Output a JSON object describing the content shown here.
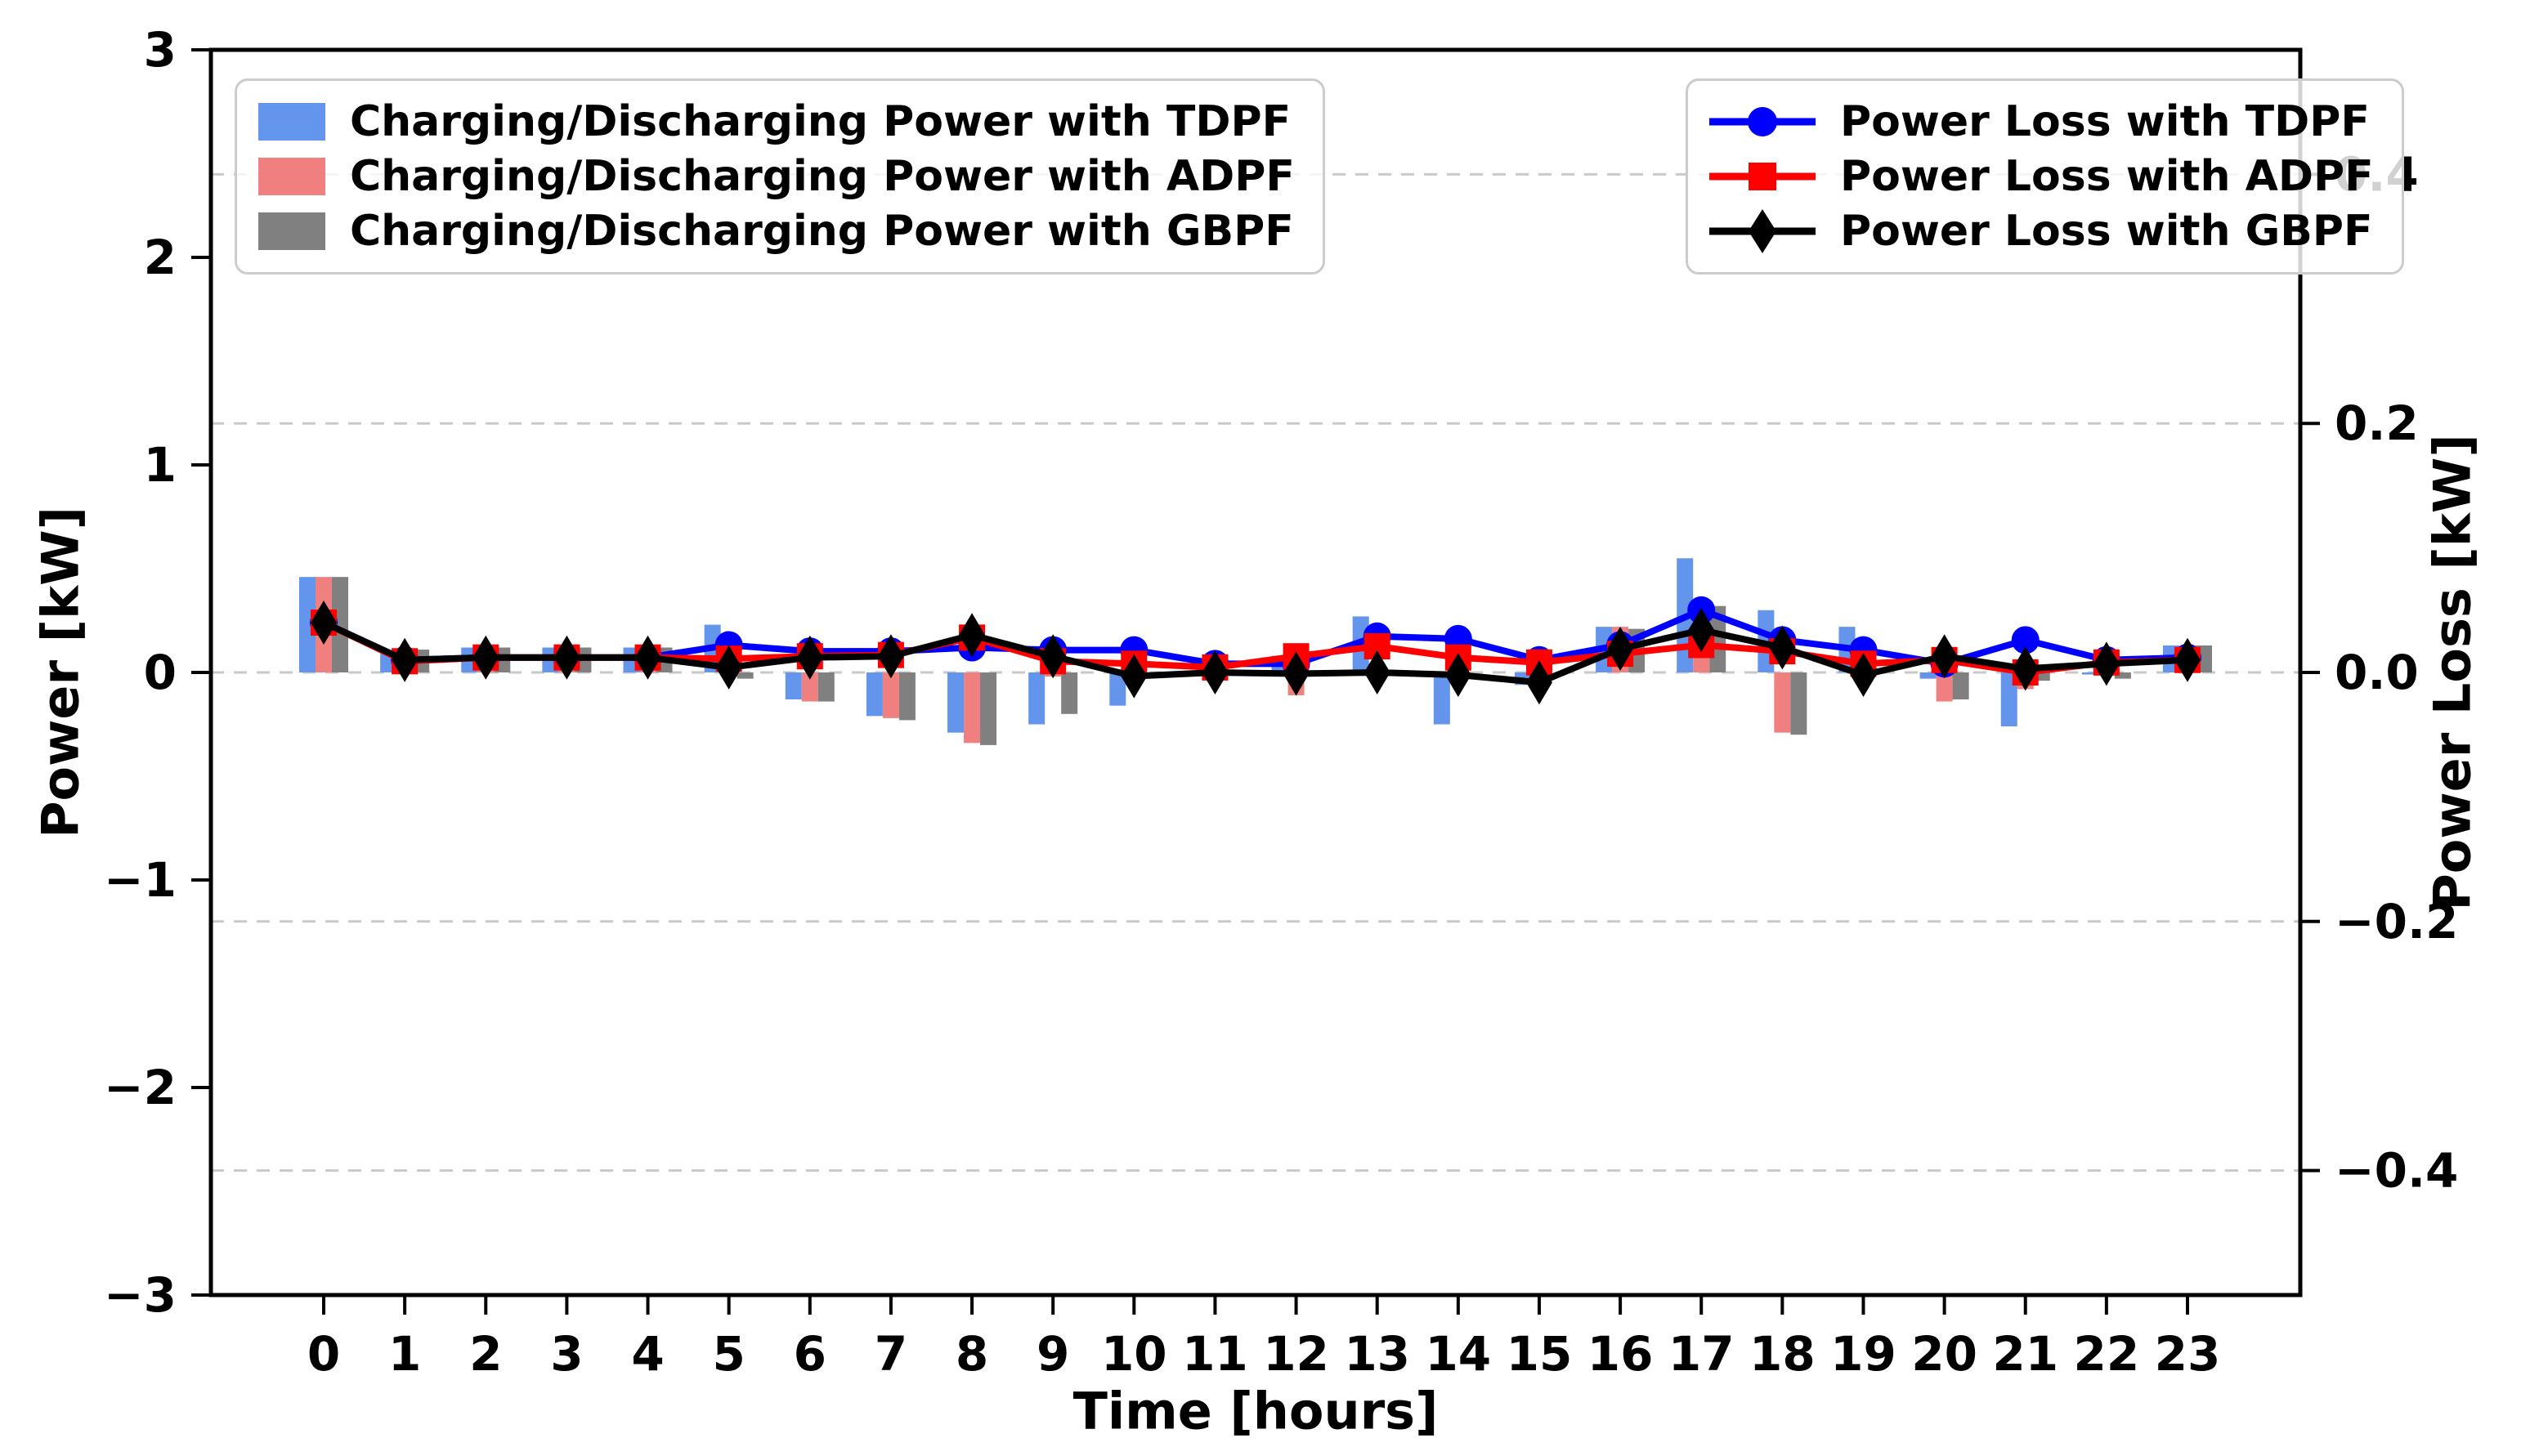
{
  "figure": {
    "xlabel": "Time [hours]",
    "ylabel_left": "Power [kW]",
    "ylabel_right": "Power Loss [kW]",
    "background_color": "#ffffff",
    "spine_color": "#000000",
    "grid_color": "#c9c9c9"
  },
  "axes": {
    "y_left_ticks": [
      {
        "v": 3,
        "label": "3"
      },
      {
        "v": 2,
        "label": "2"
      },
      {
        "v": 1,
        "label": "1"
      },
      {
        "v": 0,
        "label": "0"
      },
      {
        "v": -1,
        "label": "−1"
      },
      {
        "v": -2,
        "label": "−2"
      },
      {
        "v": -3,
        "label": "−3"
      }
    ],
    "y_right_ticks": [
      {
        "v": 0.4,
        "label": "0.4"
      },
      {
        "v": 0.2,
        "label": "0.2"
      },
      {
        "v": 0.0,
        "label": "0.0"
      },
      {
        "v": -0.2,
        "label": "−0.2"
      },
      {
        "v": -0.4,
        "label": "−0.4"
      }
    ],
    "grid_right_values": [
      0.4,
      0.2,
      0.0,
      -0.2,
      -0.4
    ]
  },
  "chart_data": {
    "type": "bar+line",
    "title": "",
    "xlabel": "Time [hours]",
    "ylabel_left": "Power [kW]",
    "ylabel_right": "Power Loss [kW]",
    "ylim_left": [
      -3,
      3
    ],
    "ylim_right": [
      -0.5,
      0.5
    ],
    "grid": "horizontal dashed lines at right-axis ticks",
    "legend_positions": [
      "upper left",
      "upper right"
    ],
    "categories": [
      0,
      1,
      2,
      3,
      4,
      5,
      6,
      7,
      8,
      9,
      10,
      11,
      12,
      13,
      14,
      15,
      16,
      17,
      18,
      19,
      20,
      21,
      22,
      23
    ],
    "bar_series": [
      {
        "name": "Charging/Discharging Power with TDPF",
        "color": "#6495ED",
        "axis": "left",
        "values": [
          0.46,
          0.09,
          0.12,
          0.12,
          0.12,
          0.23,
          -0.13,
          -0.21,
          -0.29,
          -0.25,
          -0.16,
          0,
          0.08,
          0.27,
          -0.25,
          -0.06,
          0.22,
          0.55,
          0.3,
          0.22,
          -0.03,
          -0.26,
          -0.01,
          0.13
        ]
      },
      {
        "name": "Charging/Discharging Power with ADPF",
        "color": "#F08080",
        "axis": "left",
        "values": [
          0.46,
          0.08,
          0.08,
          0.08,
          0.08,
          -0.02,
          -0.14,
          -0.22,
          -0.34,
          -0.02,
          0,
          0,
          -0.11,
          0,
          0,
          0,
          0.22,
          0.12,
          -0.29,
          0,
          -0.14,
          -0.08,
          0,
          0.1
        ]
      },
      {
        "name": "Charging/Discharging Power with GBPF",
        "color": "#808080",
        "axis": "left",
        "values": [
          0.46,
          0.11,
          0.12,
          0.12,
          0.12,
          -0.03,
          -0.14,
          -0.23,
          -0.35,
          -0.2,
          0,
          0,
          0,
          0,
          0,
          0,
          0.21,
          0.32,
          -0.3,
          0,
          -0.13,
          -0.04,
          -0.03,
          0.13
        ]
      }
    ],
    "line_series": [
      {
        "name": "Power Loss with TDPF",
        "color": "#0000FF",
        "marker": "circle",
        "axis": "right",
        "values": [
          0.04,
          0.01,
          0.012,
          0.012,
          0.012,
          0.022,
          0.017,
          0.017,
          0.02,
          0.018,
          0.018,
          0.007,
          0.007,
          0.029,
          0.027,
          0.01,
          0.022,
          0.05,
          0.026,
          0.018,
          0.007,
          0.026,
          0.01,
          0.012
        ]
      },
      {
        "name": "Power Loss with ADPF",
        "color": "#FF0000",
        "marker": "square",
        "axis": "right",
        "values": [
          0.04,
          0.009,
          0.012,
          0.012,
          0.012,
          0.011,
          0.013,
          0.014,
          0.028,
          0.009,
          0.007,
          0.004,
          0.013,
          0.021,
          0.012,
          0.008,
          0.015,
          0.022,
          0.017,
          0.007,
          0.01,
          0.0,
          0.008,
          0.01
        ]
      },
      {
        "name": "Power Loss with GBPF",
        "color": "#000000",
        "marker": "diamond",
        "axis": "right",
        "values": [
          0.04,
          0.01,
          0.012,
          0.012,
          0.012,
          0.004,
          0.012,
          0.013,
          0.03,
          0.013,
          -0.003,
          0.0,
          -0.001,
          0.0,
          -0.002,
          -0.008,
          0.019,
          0.034,
          0.02,
          -0.002,
          0.013,
          0.003,
          0.007,
          0.01
        ]
      }
    ]
  }
}
